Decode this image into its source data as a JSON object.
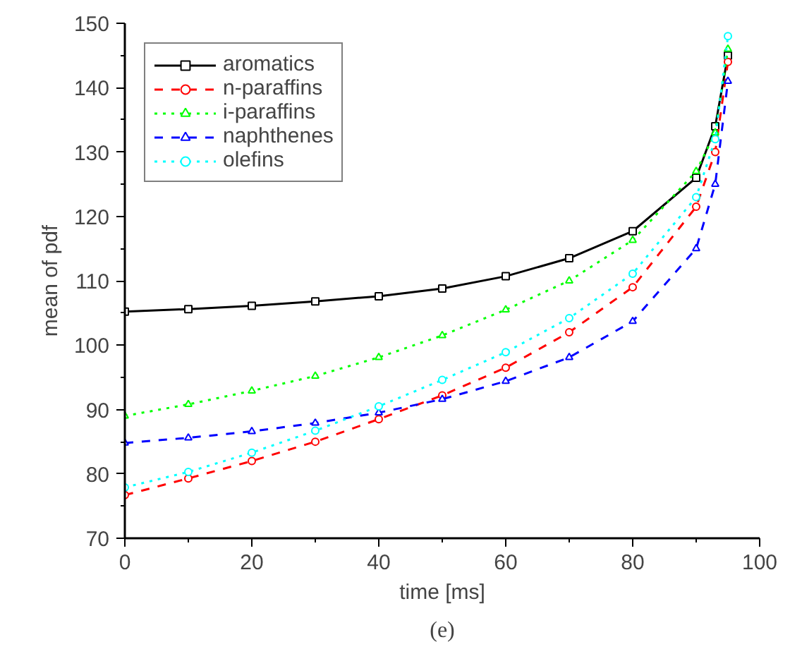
{
  "chart_data": {
    "type": "line",
    "xlabel": "time [ms]",
    "ylabel": "mean of pdf",
    "xlim": [
      0,
      100
    ],
    "ylim": [
      70,
      150
    ],
    "xticks": [
      0,
      20,
      40,
      60,
      80,
      100
    ],
    "yticks": [
      70,
      80,
      90,
      100,
      110,
      120,
      130,
      140,
      150
    ],
    "grid": false,
    "legend": "top left",
    "annotations": [
      "(e)"
    ],
    "x": [
      0,
      10,
      20,
      30,
      40,
      50,
      60,
      70,
      80,
      90,
      93,
      95
    ],
    "series": [
      {
        "name": "aromatics",
        "color": "#000000",
        "marker": "square",
        "line_style": "solid",
        "values": [
          105.2,
          105.6,
          106.1,
          106.8,
          107.6,
          108.8,
          110.7,
          113.5,
          117.7,
          126,
          134,
          145
        ]
      },
      {
        "name": "n-paraffins",
        "color": "#ff0000",
        "marker": "circle",
        "line_style": "dashed",
        "values": [
          76.7,
          79.3,
          82,
          85,
          88.5,
          92.2,
          96.5,
          102,
          109,
          121.5,
          130,
          144
        ]
      },
      {
        "name": "i-paraffins",
        "color": "#00ff00",
        "marker": "triangle",
        "line_style": "dotted",
        "values": [
          89,
          90.8,
          92.9,
          95.2,
          98.1,
          101.5,
          105.5,
          110,
          116.3,
          127,
          133,
          146
        ]
      },
      {
        "name": "naphthenes",
        "color": "#0000ff",
        "marker": "triangle",
        "line_style": "dashed",
        "values": [
          84.8,
          85.6,
          86.6,
          87.9,
          89.5,
          91.6,
          94.4,
          98.1,
          103.7,
          115,
          125,
          141
        ]
      },
      {
        "name": "olefins",
        "color": "#00ffff",
        "marker": "circle",
        "line_style": "dotted",
        "values": [
          77.9,
          80.3,
          83.3,
          86.7,
          90.5,
          94.6,
          98.9,
          104.2,
          111.1,
          123,
          132,
          148
        ]
      }
    ]
  }
}
